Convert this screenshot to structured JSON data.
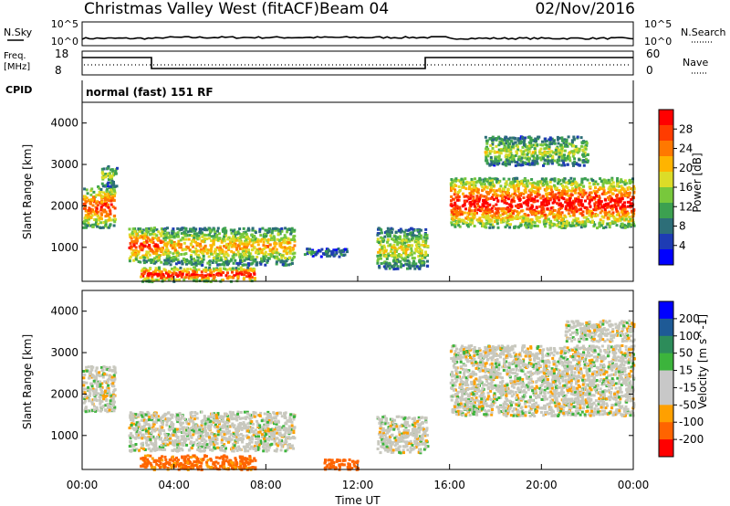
{
  "header": {
    "station": "Christmas Valley West (fitACF)",
    "beam": "Beam 04",
    "date": "02/Nov/2016"
  },
  "nsky": {
    "label": "N.Sky",
    "ticks": [
      "10^5",
      "10^0"
    ],
    "right_label": "N.Search"
  },
  "freq": {
    "label_line1": "Freq.",
    "label_line2": "[MHz]",
    "ticks_left": [
      "18",
      "8"
    ],
    "ticks_right": [
      "60",
      "0"
    ],
    "right_label": "Nave"
  },
  "cpid": {
    "label": "CPID",
    "mode": "normal (fast) 151 RF"
  },
  "colors": {
    "power": [
      "#0000ff",
      "#1e3cb4",
      "#2d6e78",
      "#3ca050",
      "#78c83c",
      "#dcdc28",
      "#ffb400",
      "#ff7800",
      "#ff3c00",
      "#ff0000"
    ],
    "velocity": [
      "#ff0000",
      "#ff6400",
      "#ffa000",
      "#c8c8c8",
      "#c8c8c8",
      "#3cb43c",
      "#2d8c5a",
      "#1e5a96",
      "#0000ff"
    ],
    "ground": "#c8c8be"
  },
  "chart_data": [
    {
      "type": "heatmap",
      "parameter": "Power",
      "ylabel": "Slant Range [km]",
      "colorbar_label": "Power [dB]",
      "colorbar_ticks": [
        "28",
        "24",
        "20",
        "16",
        "12",
        "8",
        "4"
      ],
      "y_ticks": [
        "4000",
        "3000",
        "2000",
        "1000"
      ],
      "ylim": [
        180,
        4500
      ],
      "x_range_hours": [
        0,
        24
      ],
      "regions": [
        {
          "t": [
            0.0,
            1.4
          ],
          "r": [
            1500,
            2500
          ],
          "level": 0.9
        },
        {
          "t": [
            0.8,
            1.5
          ],
          "r": [
            2500,
            3000
          ],
          "level": 0.5
        },
        {
          "t": [
            2.0,
            3.5
          ],
          "r": [
            650,
            1500
          ],
          "level": 0.9
        },
        {
          "t": [
            3.5,
            9.2
          ],
          "r": [
            600,
            1500
          ],
          "level": 0.7
        },
        {
          "t": [
            2.5,
            7.5
          ],
          "r": [
            200,
            550
          ],
          "level": 1.0
        },
        {
          "t": [
            9.5,
            11.5
          ],
          "r": [
            800,
            1000
          ],
          "level": 0.3
        },
        {
          "t": [
            12.8,
            15.0
          ],
          "r": [
            500,
            1500
          ],
          "level": 0.6
        },
        {
          "t": [
            16.0,
            24.0
          ],
          "r": [
            1500,
            2700
          ],
          "level": 1.0
        },
        {
          "t": [
            17.5,
            22.0
          ],
          "r": [
            3000,
            3700
          ],
          "level": 0.55
        }
      ]
    },
    {
      "type": "heatmap",
      "parameter": "Velocity",
      "ylabel": "Slant Range [km]",
      "colorbar_label": "Velocity [m s^-1]",
      "colorbar_ticks": [
        "200",
        "100",
        "50",
        "15",
        "-15",
        "-50",
        "-100",
        "-200"
      ],
      "y_ticks": [
        "4000",
        "3000",
        "2000",
        "1000"
      ],
      "ylim": [
        180,
        4500
      ],
      "x_ticks": [
        "00:00",
        "04:00",
        "08:00",
        "12:00",
        "16:00",
        "20:00",
        "00:00"
      ],
      "xlabel": "Time UT",
      "regions": [
        {
          "t": [
            0.0,
            1.4
          ],
          "r": [
            1600,
            2700
          ],
          "velocity": 0
        },
        {
          "t": [
            2.0,
            9.2
          ],
          "r": [
            650,
            1600
          ],
          "velocity": 0
        },
        {
          "t": [
            2.5,
            7.5
          ],
          "r": [
            200,
            550
          ],
          "velocity": -60
        },
        {
          "t": [
            10.5,
            12.0
          ],
          "r": [
            200,
            450
          ],
          "velocity": -80
        },
        {
          "t": [
            12.8,
            15.0
          ],
          "r": [
            600,
            1500
          ],
          "velocity": 0
        },
        {
          "t": [
            16.0,
            24.0
          ],
          "r": [
            1500,
            3200
          ],
          "velocity": 0
        },
        {
          "t": [
            21.0,
            24.0
          ],
          "r": [
            3300,
            3800
          ],
          "velocity": 0
        }
      ]
    }
  ]
}
